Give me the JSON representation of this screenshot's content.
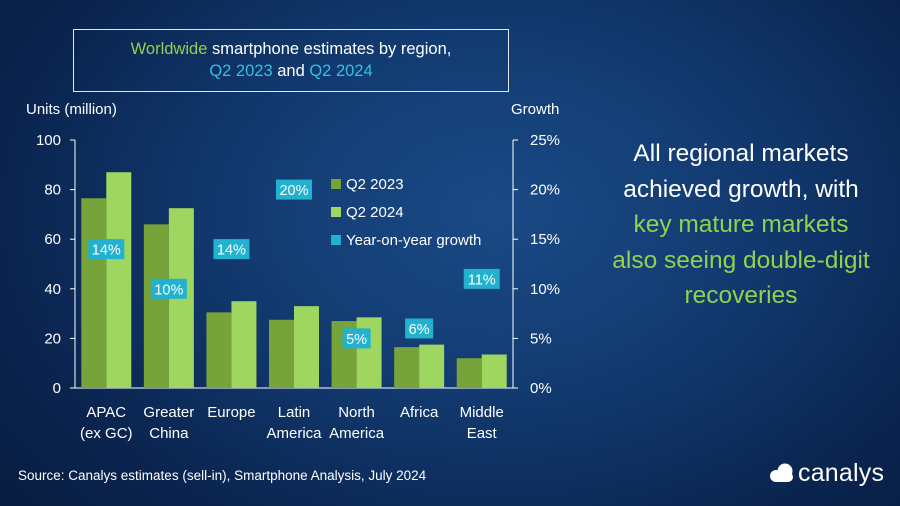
{
  "title": {
    "part1": "Worldwide",
    "part2": " smartphone estimates by region,",
    "part3": "Q2 2023",
    "part4": " and ",
    "part5": "Q2 2024"
  },
  "callout": {
    "line1": "All regional markets",
    "line2": "achieved growth, with",
    "line3": "key mature markets",
    "line4": "also seeing double-digit",
    "line5": "recoveries"
  },
  "source": "Source: Canalys estimates (sell-in), Smartphone Analysis, July 2024",
  "logo_text": "canalys",
  "colors": {
    "q2_2023": "#76a33a",
    "q2_2024": "#9fd65f",
    "growth": "#22b2cf",
    "accent_green": "#92d050",
    "accent_cyan": "#33c0e4"
  },
  "chart_data": {
    "type": "bar",
    "ylabel": "Units (million)",
    "y2label": "Growth",
    "ylim": [
      0,
      100
    ],
    "y2lim": [
      0,
      25
    ],
    "yticks": [
      0,
      20,
      40,
      60,
      80,
      100
    ],
    "y2ticks": [
      "0%",
      "5%",
      "10%",
      "15%",
      "20%",
      "25%"
    ],
    "categories": [
      [
        "APAC",
        "(ex GC)"
      ],
      [
        "Greater",
        "China"
      ],
      [
        "Europe"
      ],
      [
        "Latin",
        "America"
      ],
      [
        "North",
        "America"
      ],
      [
        "Africa"
      ],
      [
        "Middle",
        "East"
      ]
    ],
    "series": [
      {
        "name": "Q2 2023",
        "values": [
          76.5,
          66,
          30.5,
          27.5,
          27,
          16.5,
          12
        ]
      },
      {
        "name": "Q2 2024",
        "values": [
          87,
          72.5,
          35,
          33,
          28.5,
          17.5,
          13.5
        ]
      }
    ],
    "growth": {
      "name": "Year-on-year growth",
      "values": [
        14,
        10,
        14,
        20,
        5,
        6,
        11
      ],
      "labels": [
        "14%",
        "10%",
        "14%",
        "20%",
        "5%",
        "6%",
        "11%"
      ]
    },
    "legend_position": "center-right"
  }
}
